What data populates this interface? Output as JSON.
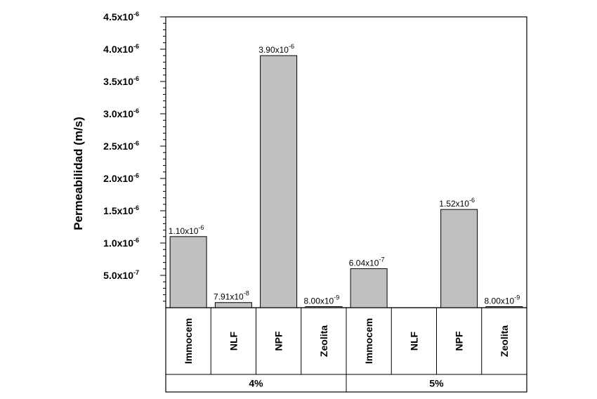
{
  "chart_data": {
    "type": "bar",
    "ylabel": "Permeabilidad (m/s)",
    "ylim": [
      0,
      4.5e-06
    ],
    "yticks": [
      {
        "value": 5e-07,
        "mant": "5.0x10",
        "exp": "-7"
      },
      {
        "value": 1e-06,
        "mant": "1.0x10",
        "exp": "-6"
      },
      {
        "value": 1.5e-06,
        "mant": "1.5x10",
        "exp": "-6"
      },
      {
        "value": 2e-06,
        "mant": "2.0x10",
        "exp": "-6"
      },
      {
        "value": 2.5e-06,
        "mant": "2.5x10",
        "exp": "-6"
      },
      {
        "value": 3e-06,
        "mant": "3.0x10",
        "exp": "-6"
      },
      {
        "value": 3.5e-06,
        "mant": "3.5x10",
        "exp": "-6"
      },
      {
        "value": 4e-06,
        "mant": "4.0x10",
        "exp": "-6"
      },
      {
        "value": 4.5e-06,
        "mant": "4.5x10",
        "exp": "-6"
      }
    ],
    "groups": [
      {
        "label": "4%",
        "categories": [
          "Immocem",
          "NLF",
          "NPF",
          "Zeolita"
        ]
      },
      {
        "label": "5%",
        "categories": [
          "Immocem",
          "NLF",
          "NPF",
          "Zeolita"
        ]
      }
    ],
    "bars": [
      {
        "group": 0,
        "category": "Immocem",
        "value": 1.1e-06,
        "label_mant": "1.10x10",
        "label_exp": "-6"
      },
      {
        "group": 0,
        "category": "NLF",
        "value": 7.91e-08,
        "label_mant": "7.91x10",
        "label_exp": "-8"
      },
      {
        "group": 0,
        "category": "NPF",
        "value": 3.9e-06,
        "label_mant": "3.90x10",
        "label_exp": "-6"
      },
      {
        "group": 0,
        "category": "Zeolita",
        "value": 8e-09,
        "label_mant": "8.00x10",
        "label_exp": "-9"
      },
      {
        "group": 1,
        "category": "Immocem",
        "value": 6.04e-07,
        "label_mant": "6.04x10",
        "label_exp": "-7"
      },
      {
        "group": 1,
        "category": "NLF",
        "value": null,
        "label_mant": "",
        "label_exp": ""
      },
      {
        "group": 1,
        "category": "NPF",
        "value": 1.52e-06,
        "label_mant": "1.52x10",
        "label_exp": "-6"
      },
      {
        "group": 1,
        "category": "Zeolita",
        "value": 8e-09,
        "label_mant": "8.00x10",
        "label_exp": "-9"
      }
    ],
    "bar_color": "#c0c0c0",
    "grid": false
  }
}
